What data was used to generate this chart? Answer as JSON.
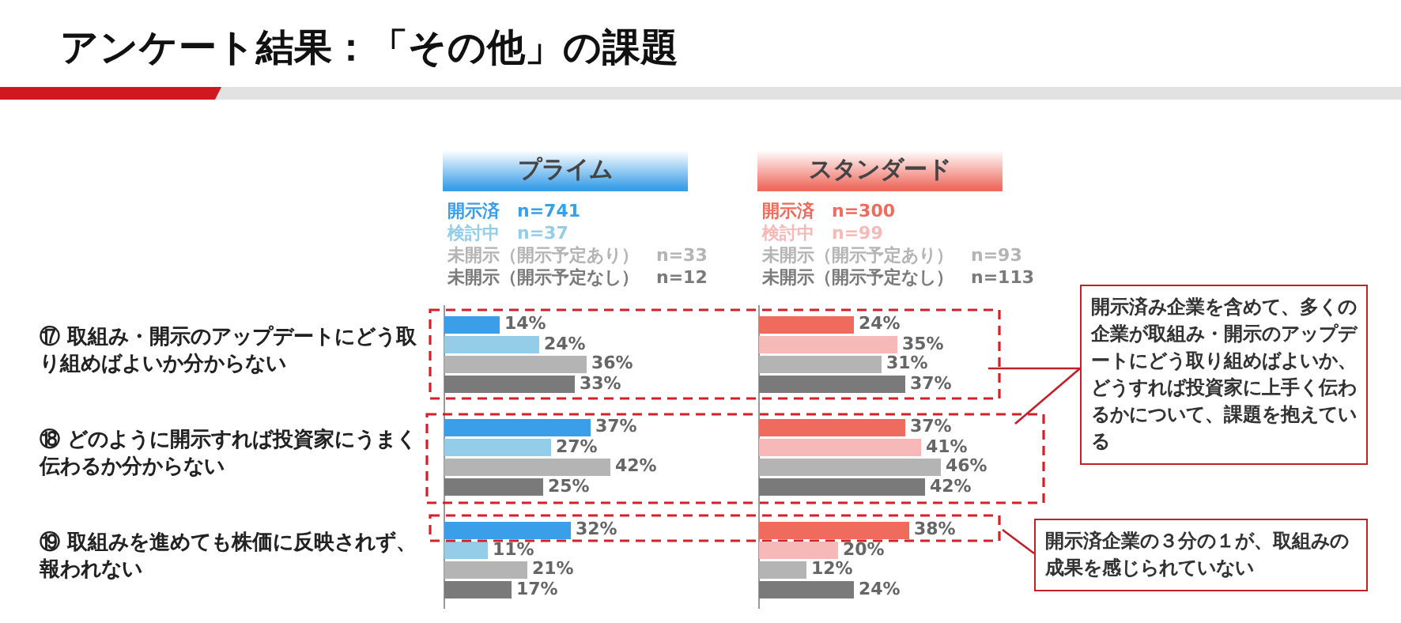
{
  "chart_data": [
    {
      "type": "bar",
      "orientation": "horizontal",
      "title": "アンケート結果：「その他」の課題",
      "subtitle": "プライム",
      "categories": [
        "⑰ 取組み・開示のアップデートにどう取り組めばよいか分からない",
        "⑱ どのように開示すれば投資家にうまく伝わるか分からない",
        "⑲ 取組みを進めても株価に反映されず、報われない"
      ],
      "series": [
        {
          "name": "開示済　n=741",
          "color": "#3a9ee8",
          "values": [
            14,
            37,
            32
          ],
          "value_labels": [
            "14%",
            "37%",
            "32%"
          ]
        },
        {
          "name": "検討中　n=37",
          "color": "#93cde8",
          "values": [
            24,
            27,
            11
          ],
          "value_labels": [
            "24%",
            "27%",
            "11%"
          ]
        },
        {
          "name": "未開示（開示予定あり）　n=33",
          "color": "#b4b4b4",
          "values": [
            36,
            42,
            21
          ],
          "value_labels": [
            "36%",
            "42%",
            "21%"
          ]
        },
        {
          "name": "未開示（開示予定なし）　n=12",
          "color": "#7a7a7a",
          "values": [
            33,
            25,
            17
          ],
          "value_labels": [
            "33%",
            "25%",
            "17%"
          ]
        }
      ],
      "legend": "top",
      "tick_labels": "y"
    },
    {
      "type": "bar",
      "orientation": "horizontal",
      "subtitle": "スタンダード",
      "categories": [
        null,
        null,
        null
      ],
      "series": [
        {
          "name": "開示済　n=300",
          "color": "#ee6b5e",
          "values": [
            24,
            37,
            38
          ],
          "value_labels": [
            "24%",
            "37%",
            "38%"
          ]
        },
        {
          "name": "検討中　n=99",
          "color": "#f7b8b8",
          "values": [
            35,
            41,
            20
          ],
          "value_labels": [
            "35%",
            "41%",
            "20%"
          ]
        },
        {
          "name": "未開示（開示予定あり）　n=93",
          "color": "#b4b4b4",
          "values": [
            31,
            46,
            12
          ],
          "value_labels": [
            "31%",
            "46%",
            "12%"
          ]
        },
        {
          "name": "未開示（開示予定なし）　n=113",
          "color": "#7a7a7a",
          "values": [
            37,
            42,
            24
          ],
          "value_labels": [
            "37%",
            "42%",
            "24%"
          ]
        }
      ],
      "legend": "top",
      "tick_labels": false,
      "annotations": [
        "開示済み企業を含めて、多くの企業が取組み・開示のアップデートにどう取り組めばよいか、どうすれば投資家に上手く伝わるかについて、課題を抱えている",
        "開示済企業の３分の１が、取組みの成果を感じられていない"
      ]
    }
  ]
}
